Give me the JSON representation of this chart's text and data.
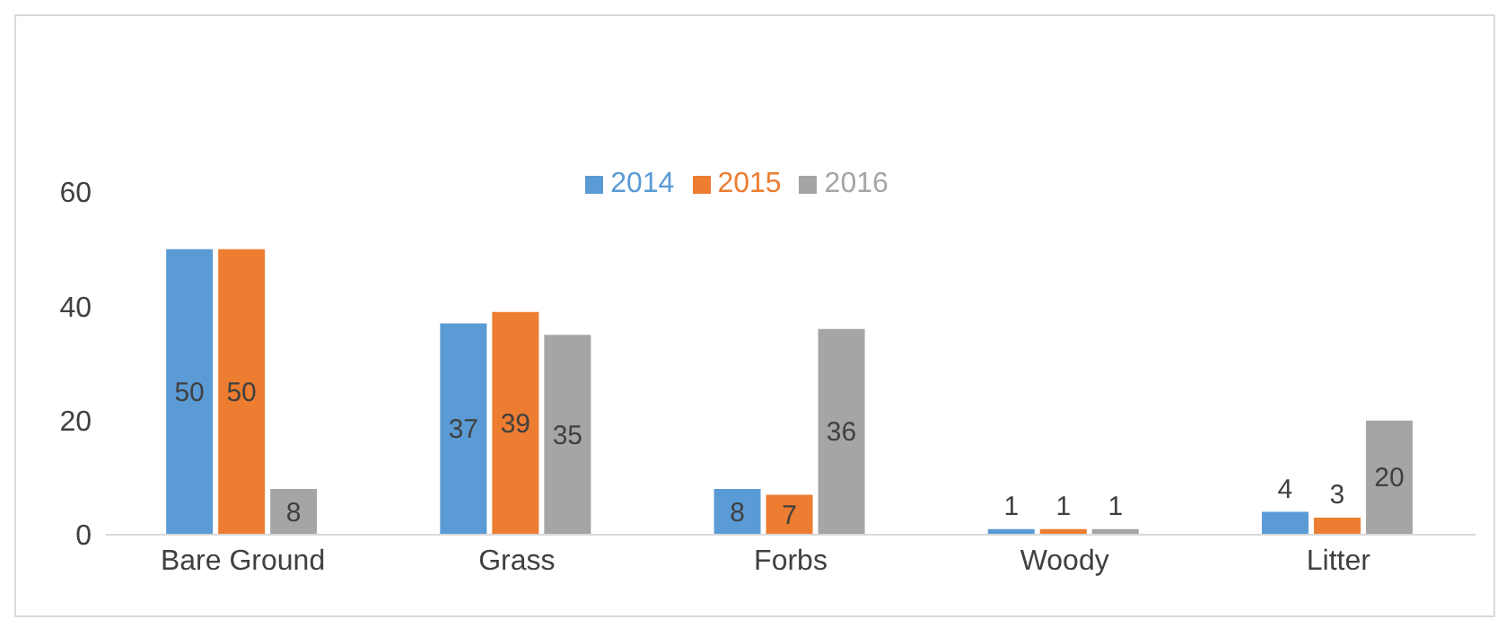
{
  "chart_data": {
    "type": "bar",
    "categories": [
      "Bare Ground",
      "Grass",
      "Forbs",
      "Woody",
      "Litter"
    ],
    "series": [
      {
        "name": "2014",
        "color": "#5b9bd5",
        "values": [
          50,
          37,
          8,
          1,
          4
        ]
      },
      {
        "name": "2015",
        "color": "#ed7d31",
        "values": [
          50,
          39,
          7,
          1,
          3
        ]
      },
      {
        "name": "2016",
        "color": "#a5a5a5",
        "values": [
          8,
          35,
          36,
          1,
          20
        ]
      }
    ],
    "ylim": [
      0,
      60
    ],
    "yticks": [
      0,
      20,
      40,
      60
    ],
    "grid": false,
    "legend": "top",
    "data_labels": true
  }
}
